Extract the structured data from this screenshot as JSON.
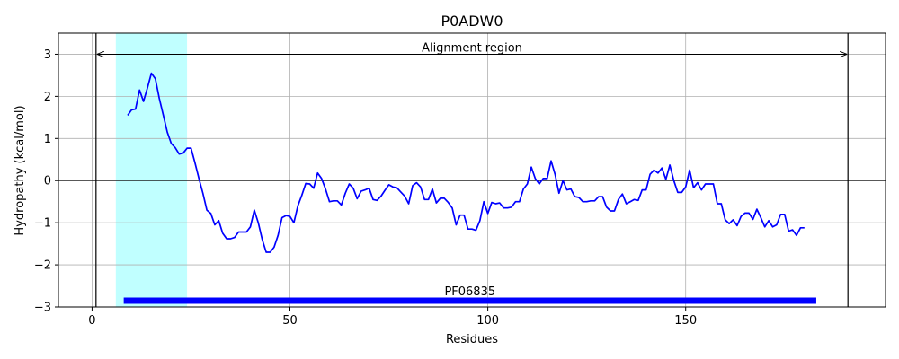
{
  "chart_data": {
    "type": "line",
    "title": "P0ADW0",
    "xlabel": "Residues",
    "ylabel": "Hydropathy (kcal/mol)",
    "xlim": [
      -8.5,
      200.5
    ],
    "ylim": [
      -3,
      3.5
    ],
    "xticks": [
      0,
      50,
      100,
      150
    ],
    "yticks": [
      -3,
      -2,
      -1,
      0,
      1,
      2,
      3
    ],
    "ytick_labels": [
      "−3",
      "−2",
      "−1",
      "0",
      "1",
      "2",
      "3"
    ],
    "grid": true,
    "colors": {
      "line": "#0000ff",
      "highlight": "#c0ffff",
      "domain_bar": "#0000ff",
      "zero_line": "#000000"
    },
    "highlight_region": {
      "start": 6,
      "end": 24
    },
    "alignment_region": {
      "label": "Alignment region",
      "start": 1,
      "end": 191,
      "y": 3.0
    },
    "domain": {
      "label": "PF06835",
      "start": 8,
      "end": 183,
      "y": -2.85
    },
    "series": [
      {
        "x": [
          9,
          10,
          11,
          12,
          13,
          14,
          15,
          16,
          17,
          18,
          19,
          20,
          21,
          22,
          23,
          24,
          25,
          26,
          27,
          28,
          29,
          30,
          31,
          32,
          33,
          34,
          35,
          36,
          37,
          38,
          39,
          40,
          41,
          42,
          43,
          44,
          45,
          46,
          47,
          48,
          49,
          50,
          51,
          52,
          53,
          54,
          55,
          56,
          57,
          58,
          59,
          60,
          61,
          62,
          63,
          64,
          65,
          66,
          67,
          68,
          69,
          70,
          71,
          72,
          73,
          74,
          75,
          76,
          77,
          78,
          79,
          80,
          81,
          82,
          83,
          84,
          85,
          86,
          87,
          88,
          89,
          90,
          91,
          92,
          93,
          94,
          95,
          96,
          97,
          98,
          99,
          100,
          101,
          102,
          103,
          104,
          105,
          106,
          107,
          108,
          109,
          110,
          111,
          112,
          113,
          114,
          115,
          116,
          117,
          118,
          119,
          120,
          121,
          122,
          123,
          124,
          125,
          126,
          127,
          128,
          129,
          130,
          131,
          132,
          133,
          134,
          135,
          136,
          137,
          138,
          139,
          140,
          141,
          142,
          143,
          144,
          145,
          146,
          147,
          148,
          149,
          150,
          151,
          152,
          153,
          154,
          155,
          156,
          157,
          158,
          159,
          160,
          161,
          162,
          163,
          164,
          165,
          166,
          167,
          168,
          169,
          170,
          171,
          172,
          173,
          174,
          175,
          176,
          177,
          178,
          179,
          180
        ],
        "y": [
          1.55,
          1.68,
          1.7,
          2.15,
          1.88,
          2.2,
          2.55,
          2.42,
          1.95,
          1.55,
          1.15,
          0.88,
          0.78,
          0.63,
          0.65,
          0.77,
          0.77,
          0.42,
          0.05,
          -0.3,
          -0.7,
          -0.78,
          -1.05,
          -0.95,
          -1.25,
          -1.38,
          -1.38,
          -1.35,
          -1.22,
          -1.22,
          -1.22,
          -1.1,
          -0.7,
          -1.0,
          -1.4,
          -1.7,
          -1.7,
          -1.58,
          -1.3,
          -0.88,
          -0.83,
          -0.85,
          -1.0,
          -0.6,
          -0.35,
          -0.07,
          -0.08,
          -0.18,
          0.18,
          0.05,
          -0.2,
          -0.5,
          -0.48,
          -0.48,
          -0.58,
          -0.3,
          -0.08,
          -0.18,
          -0.43,
          -0.25,
          -0.22,
          -0.18,
          -0.45,
          -0.47,
          -0.37,
          -0.23,
          -0.1,
          -0.15,
          -0.17,
          -0.27,
          -0.37,
          -0.55,
          -0.12,
          -0.05,
          -0.15,
          -0.45,
          -0.45,
          -0.2,
          -0.53,
          -0.42,
          -0.42,
          -0.52,
          -0.65,
          -1.05,
          -0.82,
          -0.82,
          -1.15,
          -1.15,
          -1.18,
          -0.95,
          -0.5,
          -0.78,
          -0.52,
          -0.55,
          -0.53,
          -0.65,
          -0.65,
          -0.63,
          -0.5,
          -0.5,
          -0.2,
          -0.08,
          0.32,
          0.05,
          -0.08,
          0.05,
          0.05,
          0.47,
          0.15,
          -0.3,
          0.0,
          -0.22,
          -0.2,
          -0.38,
          -0.4,
          -0.5,
          -0.5,
          -0.48,
          -0.48,
          -0.38,
          -0.38,
          -0.63,
          -0.72,
          -0.72,
          -0.45,
          -0.32,
          -0.55,
          -0.5,
          -0.45,
          -0.47,
          -0.22,
          -0.22,
          0.15,
          0.25,
          0.18,
          0.3,
          0.03,
          0.37,
          0.0,
          -0.28,
          -0.28,
          -0.15,
          0.25,
          -0.17,
          -0.05,
          -0.22,
          -0.08,
          -0.08,
          -0.08,
          -0.55,
          -0.55,
          -0.93,
          -1.02,
          -0.93,
          -1.07,
          -0.85,
          -0.77,
          -0.77,
          -0.92,
          -0.68,
          -0.88,
          -1.1,
          -0.95,
          -1.1,
          -1.05,
          -0.8,
          -0.8,
          -1.2,
          -1.17,
          -1.3,
          -1.12,
          -1.12
        ]
      }
    ]
  }
}
